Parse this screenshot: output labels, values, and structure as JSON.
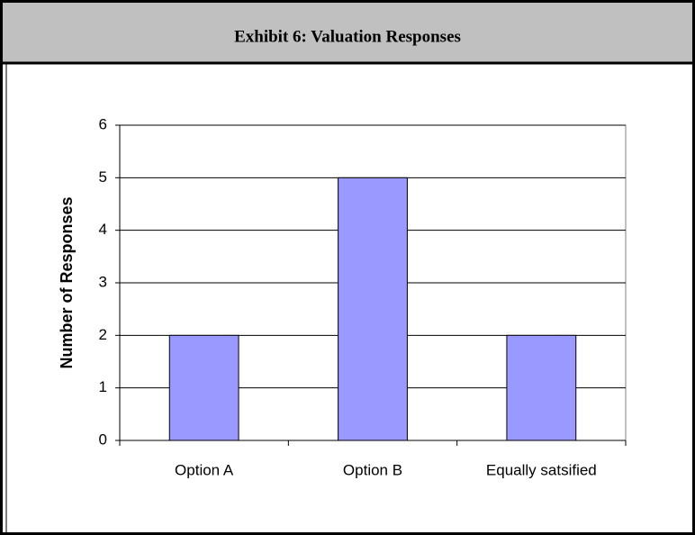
{
  "chart_data": {
    "type": "bar",
    "title": "Exhibit 6: Valuation Responses",
    "y_label": "Number of Responses",
    "categories": [
      "Option A",
      "Option B",
      "Equally satsified"
    ],
    "values": [
      2,
      5,
      2
    ],
    "color": "#9999ff",
    "ylim": [
      0,
      6
    ],
    "yticks": [
      0,
      1,
      2,
      3,
      4,
      5,
      6
    ],
    "grid": true
  }
}
